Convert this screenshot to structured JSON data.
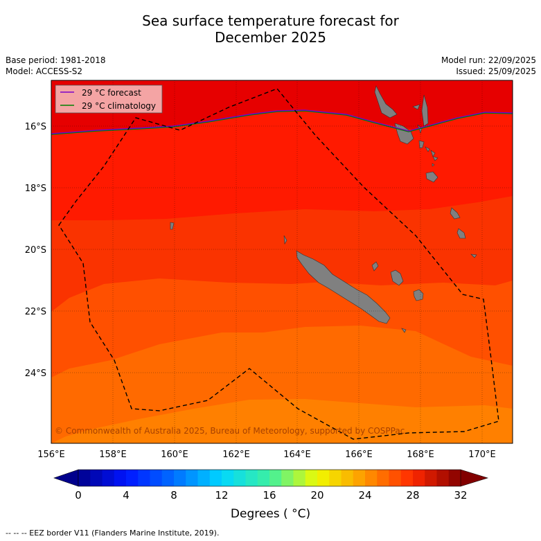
{
  "title_line1": "Sea surface temperature forecast for",
  "title_line2": "December 2025",
  "base_period": "Base period: 1981-2018",
  "model": "Model: ACCESS-S2",
  "model_run": "Model run: 22/09/2025",
  "issued": "Issued: 25/09/2025",
  "legend": {
    "forecast": "29 °C  forecast",
    "climatology": "29 °C  climatology"
  },
  "x_ticks": [
    "156°E",
    "158°E",
    "160°E",
    "162°E",
    "164°E",
    "166°E",
    "168°E",
    "170°E"
  ],
  "y_ticks": [
    "16°S",
    "18°S",
    "20°S",
    "22°S",
    "24°S"
  ],
  "copyright": "© Commonwealth of Australia 2025, Bureau of Meteorology, supported by COSPPac",
  "colorbar": {
    "min": 0,
    "max": 32,
    "step": 1,
    "tick_labels": [
      "0",
      "4",
      "8",
      "12",
      "16",
      "20",
      "24",
      "28",
      "32"
    ],
    "label": "Degrees ( °C)"
  },
  "footnote": "--  --  -- EEZ border V11 (Flanders Marine Institute, 2019).",
  "colors": {
    "band_30": "#e60000",
    "band_29": "#ff1a00",
    "band_28": "#fa3300",
    "band_27": "#ff5000",
    "band_26": "#ff6a00",
    "band_25": "#ff8000",
    "land": "#808080",
    "forecast_line": "#7a00c8",
    "climatology_line": "#008000"
  }
}
